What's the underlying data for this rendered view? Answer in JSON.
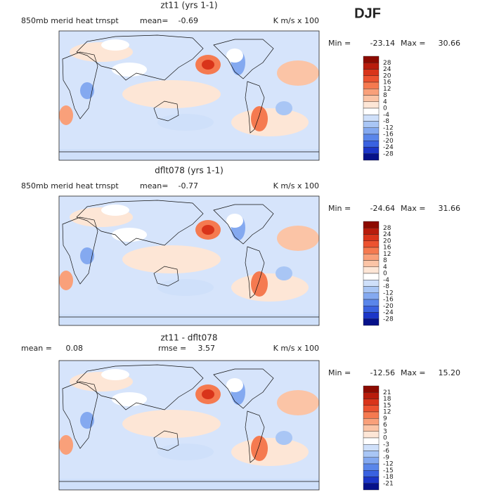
{
  "header": {
    "season": "DJF"
  },
  "colorbar_colors": [
    "#8c0a00",
    "#b81c0c",
    "#d9341a",
    "#ec5230",
    "#f57a50",
    "#f9a07a",
    "#fbc4a6",
    "#fde6d6",
    "#ffffff",
    "#cfe0fa",
    "#a9c6f5",
    "#84a9f0",
    "#5a86ea",
    "#3a62e0",
    "#1c36c8",
    "#06118a"
  ],
  "panels": [
    {
      "title": "zt11 (yrs 1-1)",
      "field": "850mb merid heat trnspt",
      "mean_label": "mean=",
      "mean": "-0.69",
      "units": "K m/s x 100",
      "min_label": "Min =",
      "min": "-23.14",
      "max_label": "Max =",
      "max": "30.66",
      "levels": [
        28,
        24,
        20,
        16,
        12,
        8,
        4,
        0,
        -4,
        -8,
        -12,
        -16,
        -20,
        -24,
        -28
      ]
    },
    {
      "title": "dflt078 (yrs 1-1)",
      "field": "850mb merid heat trnspt",
      "mean_label": "mean=",
      "mean": "-0.77",
      "units": "K m/s x 100",
      "min_label": "Min =",
      "min": "-24.64",
      "max_label": "Max =",
      "max": "31.66",
      "levels": [
        28,
        24,
        20,
        16,
        12,
        8,
        4,
        0,
        -4,
        -8,
        -12,
        -16,
        -20,
        -24,
        -28
      ]
    },
    {
      "title": "zt11 - dflt078",
      "mean_label": "mean =",
      "mean": "0.08",
      "rmse_label": "rmse =",
      "rmse": "3.57",
      "units": "K m/s x 100",
      "min_label": "Min =",
      "min": "-12.56",
      "max_label": "Max =",
      "max": "15.20",
      "levels": [
        21,
        18,
        15,
        12,
        9,
        6,
        3,
        0,
        -3,
        -6,
        -9,
        -12,
        -15,
        -18,
        -21
      ]
    }
  ]
}
